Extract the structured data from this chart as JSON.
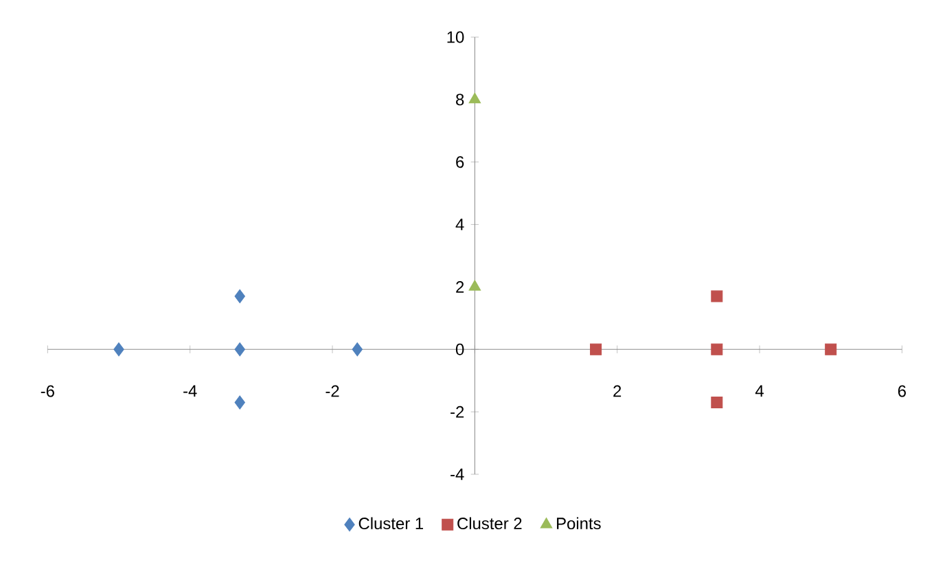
{
  "chart_data": {
    "type": "scatter",
    "legend": "bottom",
    "xlim": [
      -6,
      6
    ],
    "ylim": [
      -4,
      10
    ],
    "xticks": [
      -6,
      -4,
      -2,
      {
        "value": 0,
        "label": null
      },
      2,
      4,
      6
    ],
    "yticks": [
      -4,
      -2,
      0,
      2,
      4,
      6,
      8,
      10
    ],
    "series": [
      {
        "name": "Cluster 1",
        "color": "#4f81bd",
        "marker": "diamond",
        "x": [
          -5.0,
          -3.3,
          -3.3,
          -3.3,
          -1.65
        ],
        "values": [
          0,
          1.7,
          0,
          -1.7,
          0
        ]
      },
      {
        "name": "Cluster 2",
        "color": "#c0504d",
        "marker": "square",
        "x": [
          1.7,
          3.4,
          3.4,
          3.4,
          5.0
        ],
        "values": [
          0,
          1.7,
          0,
          -1.7,
          0
        ]
      },
      {
        "name": "Points",
        "color": "#9bbb59",
        "marker": "triangle",
        "x": [
          0,
          0
        ],
        "values": [
          8,
          2
        ]
      }
    ]
  }
}
